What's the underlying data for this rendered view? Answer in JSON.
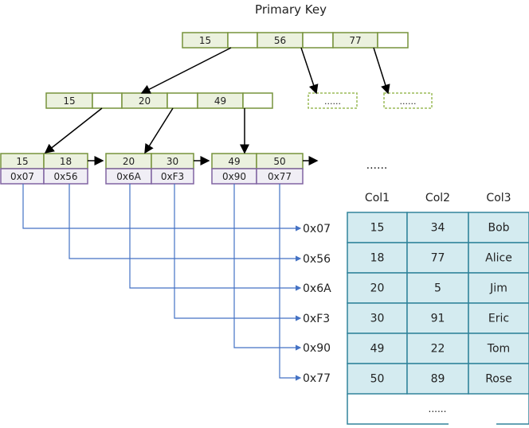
{
  "title": "Primary Key",
  "root_node": [
    "15",
    "",
    "56",
    "",
    "77",
    ""
  ],
  "internal_node": [
    "15",
    "",
    "20",
    "",
    "49",
    ""
  ],
  "placeholder_nodes": [
    "......",
    "......"
  ],
  "leaves": [
    {
      "keys": [
        "15",
        "18"
      ],
      "addresses": [
        "0x07",
        "0x56"
      ]
    },
    {
      "keys": [
        "20",
        "30"
      ],
      "addresses": [
        "0x6A",
        "0xF3"
      ]
    },
    {
      "keys": [
        "49",
        "50"
      ],
      "addresses": [
        "0x90",
        "0x77"
      ]
    }
  ],
  "leaf_ellipsis": "......",
  "row_addresses": [
    "0x07",
    "0x56",
    "0x6A",
    "0xF3",
    "0x90",
    "0x77"
  ],
  "table": {
    "headers": [
      "Col1",
      "Col2",
      "Col3"
    ],
    "rows": [
      [
        "15",
        "34",
        "Bob"
      ],
      [
        "18",
        "77",
        "Alice"
      ],
      [
        "20",
        "5",
        "Jim"
      ],
      [
        "30",
        "91",
        "Eric"
      ],
      [
        "49",
        "22",
        "Tom"
      ],
      [
        "50",
        "89",
        "Rose"
      ]
    ],
    "ellipsis": "......"
  },
  "colors": {
    "key_fill": "#ebf1de",
    "key_border": "#77933c",
    "addr_fill": "#f0eef5",
    "addr_border": "#8064a2",
    "table_fill": "#d4ebf0",
    "table_border": "#31849b",
    "pointer_line": "#4472c4"
  }
}
